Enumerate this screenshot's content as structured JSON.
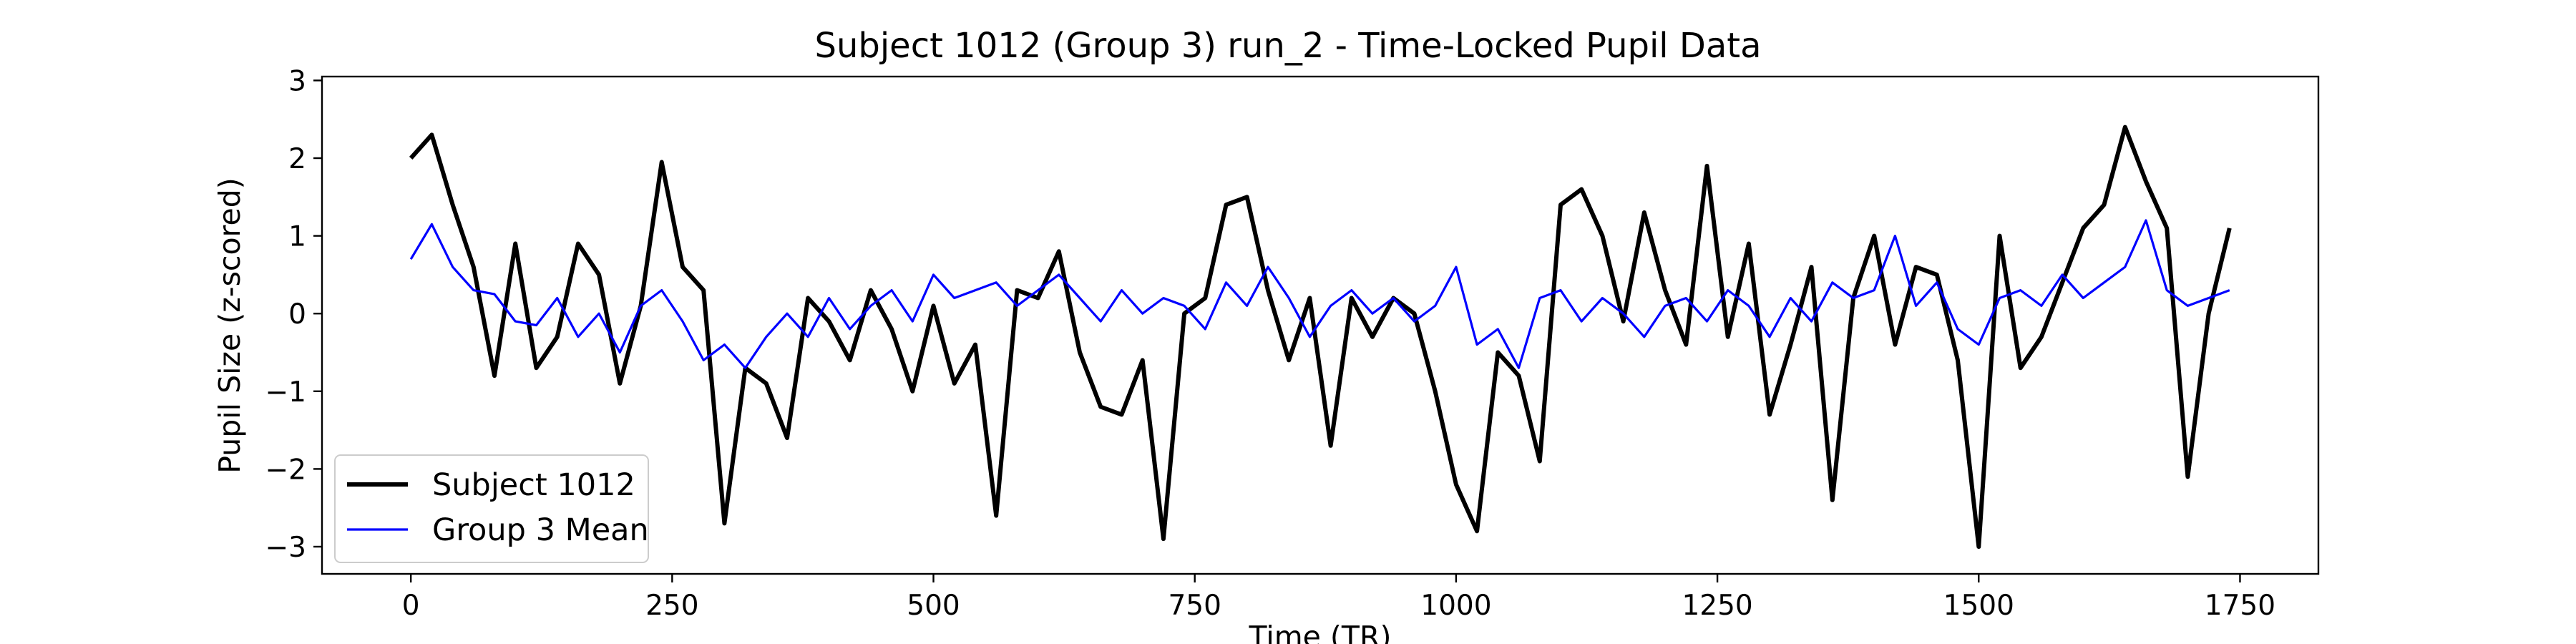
{
  "chart_data": {
    "type": "line",
    "title": "Subject 1012 (Group 3) run_2 - Time-Locked Pupil Data",
    "xlabel": "Time (TR)",
    "ylabel": "Pupil Size (z-scored)",
    "xlim": [
      -85,
      1825
    ],
    "ylim": [
      -3.35,
      3.05
    ],
    "xticks": [
      0,
      250,
      500,
      750,
      1000,
      1250,
      1500,
      1750
    ],
    "yticks": [
      -3,
      -2,
      -1,
      0,
      1,
      2,
      3
    ],
    "xtick_labels": [
      "0",
      "250",
      "500",
      "750",
      "1000",
      "1250",
      "1500",
      "1750"
    ],
    "ytick_labels": [
      "−3",
      "−2",
      "−1",
      "0",
      "1",
      "2",
      "3"
    ],
    "grid": false,
    "legend_position": "lower-left",
    "series": [
      {
        "name": "Subject 1012",
        "color": "#000000",
        "x": [
          0,
          20,
          40,
          60,
          80,
          100,
          120,
          140,
          160,
          180,
          200,
          220,
          240,
          260,
          280,
          300,
          320,
          340,
          360,
          380,
          400,
          420,
          440,
          460,
          480,
          500,
          520,
          540,
          560,
          580,
          600,
          620,
          640,
          660,
          680,
          700,
          720,
          740,
          760,
          780,
          800,
          820,
          840,
          860,
          880,
          900,
          920,
          940,
          960,
          980,
          1000,
          1020,
          1040,
          1060,
          1080,
          1100,
          1120,
          1140,
          1160,
          1180,
          1200,
          1220,
          1240,
          1260,
          1280,
          1300,
          1320,
          1340,
          1360,
          1380,
          1400,
          1420,
          1440,
          1460,
          1480,
          1500,
          1520,
          1540,
          1560,
          1580,
          1600,
          1620,
          1640,
          1660,
          1680,
          1700,
          1720,
          1740
        ],
        "y": [
          2.0,
          2.3,
          1.4,
          0.6,
          -0.8,
          0.9,
          -0.7,
          -0.3,
          0.9,
          0.5,
          -0.9,
          0.1,
          1.95,
          0.6,
          0.3,
          -2.7,
          -0.7,
          -0.9,
          -1.6,
          0.2,
          -0.1,
          -0.6,
          0.3,
          -0.2,
          -1.0,
          0.1,
          -0.9,
          -0.4,
          -2.6,
          0.3,
          0.2,
          0.8,
          -0.5,
          -1.2,
          -1.3,
          -0.6,
          -2.9,
          0.0,
          0.2,
          1.4,
          1.5,
          0.3,
          -0.6,
          0.2,
          -1.7,
          0.2,
          -0.3,
          0.2,
          0.0,
          -1.0,
          -2.2,
          -2.8,
          -0.5,
          -0.8,
          -1.9,
          1.4,
          1.6,
          1.0,
          -0.1,
          1.3,
          0.3,
          -0.4,
          1.9,
          -0.3,
          0.9,
          -1.3,
          -0.4,
          0.6,
          -2.4,
          0.2,
          1.0,
          -0.4,
          0.6,
          0.5,
          -0.6,
          -3.0,
          1.0,
          -0.7,
          -0.3,
          0.4,
          1.1,
          1.4,
          2.4,
          1.7,
          1.1,
          -2.1,
          0.0,
          1.1
        ]
      },
      {
        "name": "Group 3 Mean",
        "color": "#0000ff",
        "x": [
          0,
          20,
          40,
          60,
          80,
          100,
          120,
          140,
          160,
          180,
          200,
          220,
          240,
          260,
          280,
          300,
          320,
          340,
          360,
          380,
          400,
          420,
          440,
          460,
          480,
          500,
          520,
          540,
          560,
          580,
          600,
          620,
          640,
          660,
          680,
          700,
          720,
          740,
          760,
          780,
          800,
          820,
          840,
          860,
          880,
          900,
          920,
          940,
          960,
          980,
          1000,
          1020,
          1040,
          1060,
          1080,
          1100,
          1120,
          1140,
          1160,
          1180,
          1200,
          1220,
          1240,
          1260,
          1280,
          1300,
          1320,
          1340,
          1360,
          1380,
          1400,
          1420,
          1440,
          1460,
          1480,
          1500,
          1520,
          1540,
          1560,
          1580,
          1600,
          1620,
          1640,
          1660,
          1680,
          1700,
          1720,
          1740
        ],
        "y": [
          0.7,
          1.15,
          0.6,
          0.3,
          0.25,
          -0.1,
          -0.15,
          0.2,
          -0.3,
          0.0,
          -0.5,
          0.1,
          0.3,
          -0.1,
          -0.6,
          -0.4,
          -0.7,
          -0.3,
          0.0,
          -0.3,
          0.2,
          -0.2,
          0.1,
          0.3,
          -0.1,
          0.5,
          0.2,
          0.3,
          0.4,
          0.1,
          0.3,
          0.5,
          0.2,
          -0.1,
          0.3,
          0.0,
          0.2,
          0.1,
          -0.2,
          0.4,
          0.1,
          0.6,
          0.2,
          -0.3,
          0.1,
          0.3,
          0.0,
          0.2,
          -0.1,
          0.1,
          0.6,
          -0.4,
          -0.2,
          -0.7,
          0.2,
          0.3,
          -0.1,
          0.2,
          0.0,
          -0.3,
          0.1,
          0.2,
          -0.1,
          0.3,
          0.1,
          -0.3,
          0.2,
          -0.1,
          0.4,
          0.2,
          0.3,
          1.0,
          0.1,
          0.4,
          -0.2,
          -0.4,
          0.2,
          0.3,
          0.1,
          0.5,
          0.2,
          0.4,
          0.6,
          1.2,
          0.3,
          0.1,
          0.2,
          0.3
        ]
      }
    ]
  }
}
